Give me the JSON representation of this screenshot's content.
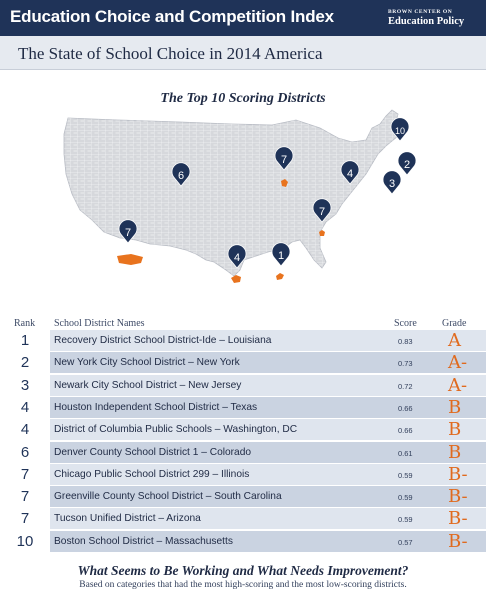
{
  "header": {
    "title": "Education Choice and Competition Index",
    "brand_top": "BROWN CENTER on",
    "brand_bottom": "Education Policy"
  },
  "subtitle": "The State of School Choice in 2014 America",
  "map": {
    "title": "The Top 10 Scoring Districts",
    "colors": {
      "land": "#d6d8dc",
      "county_lines": "#ffffff",
      "marker": "#1f3358",
      "highlight": "#e8731e"
    },
    "markers": [
      {
        "label": "1",
        "place": "New Orleans, LA"
      },
      {
        "label": "2",
        "place": "New York, NY"
      },
      {
        "label": "3",
        "place": "Newark, NJ"
      },
      {
        "label": "4",
        "place": "Houston, TX"
      },
      {
        "label": "4",
        "place": "Washington, DC"
      },
      {
        "label": "6",
        "place": "Denver, CO"
      },
      {
        "label": "7",
        "place": "Chicago, IL"
      },
      {
        "label": "7",
        "place": "Greenville, SC"
      },
      {
        "label": "7",
        "place": "Tucson, AZ"
      },
      {
        "label": "10",
        "place": "Boston, MA"
      }
    ]
  },
  "table": {
    "headers": {
      "rank": "Rank",
      "name": "School District Names",
      "score": "Score",
      "grade": "Grade"
    },
    "rows": [
      {
        "rank": "1",
        "name": "Recovery District School District-Ide – Louisiana",
        "score": "0.83",
        "grade": "A"
      },
      {
        "rank": "2",
        "name": "New York City School District – New York",
        "score": "0.73",
        "grade": "A-"
      },
      {
        "rank": "3",
        "name": "Newark City School District – New Jersey",
        "score": "0.72",
        "grade": "A-"
      },
      {
        "rank": "4",
        "name": "Houston Independent School District – Texas",
        "score": "0.66",
        "grade": "B"
      },
      {
        "rank": "4",
        "name": "District of Columbia Public Schools – Washington, DC",
        "score": "0.66",
        "grade": "B"
      },
      {
        "rank": "6",
        "name": "Denver County School District 1 – Colorado",
        "score": "0.61",
        "grade": "B"
      },
      {
        "rank": "7",
        "name": "Chicago Public School District 299 – Illinois",
        "score": "0.59",
        "grade": "B-"
      },
      {
        "rank": "7",
        "name": "Greenville County School District – South Carolina",
        "score": "0.59",
        "grade": "B-"
      },
      {
        "rank": "7",
        "name": "Tucson Unified District – Arizona",
        "score": "0.59",
        "grade": "B-"
      },
      {
        "rank": "10",
        "name": "Boston School District – Massachusetts",
        "score": "0.57",
        "grade": "B-"
      }
    ]
  },
  "footer": {
    "title": "What Seems to Be Working and What Needs Improvement?",
    "subtitle": "Based on categories that had the most high-scoring and the most low-scoring districts."
  }
}
